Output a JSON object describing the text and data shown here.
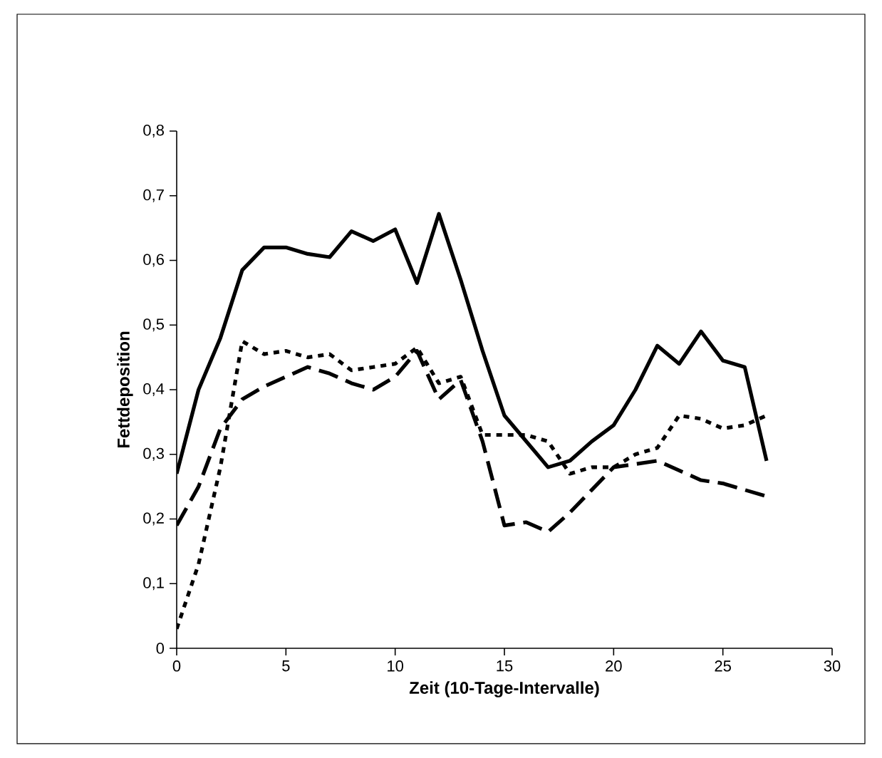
{
  "chart_data": {
    "type": "line",
    "xlabel": "Zeit (10-Tage-Intervalle)",
    "ylabel": "Fettdeposition",
    "x": [
      0,
      1,
      2,
      3,
      4,
      5,
      6,
      7,
      8,
      9,
      10,
      11,
      12,
      13,
      14,
      15,
      16,
      17,
      18,
      19,
      20,
      21,
      22,
      23,
      24,
      25,
      26,
      27
    ],
    "series": [
      {
        "color": "#000000",
        "line_style": "solid",
        "values": [
          0.27,
          0.4,
          0.48,
          0.585,
          0.62,
          0.62,
          0.61,
          0.605,
          0.645,
          0.63,
          0.648,
          0.565,
          0.672,
          0.57,
          0.46,
          0.36,
          0.32,
          0.28,
          0.29,
          0.32,
          0.345,
          0.4,
          0.468,
          0.44,
          0.49,
          0.445,
          0.435,
          0.29
        ]
      },
      {
        "color": "#000000",
        "line_style": "dotted",
        "values": [
          0.03,
          0.13,
          0.28,
          0.475,
          0.455,
          0.46,
          0.45,
          0.455,
          0.43,
          0.435,
          0.44,
          0.465,
          0.41,
          0.42,
          0.33,
          0.33,
          0.33,
          0.32,
          0.27,
          0.28,
          0.28,
          0.3,
          0.31,
          0.36,
          0.355,
          0.34,
          0.345,
          0.36
        ]
      },
      {
        "color": "#000000",
        "line_style": "dashed",
        "values": [
          0.19,
          0.25,
          0.34,
          0.385,
          0.405,
          0.42,
          0.435,
          0.425,
          0.41,
          0.4,
          0.42,
          0.46,
          0.385,
          0.415,
          0.32,
          0.19,
          0.195,
          0.18,
          0.21,
          0.245,
          0.28,
          0.285,
          0.29,
          0.275,
          0.26,
          0.255,
          0.245,
          0.235
        ]
      }
    ],
    "xlim": [
      0,
      30
    ],
    "xticks": [
      0,
      5,
      10,
      15,
      20,
      25,
      30
    ],
    "ylim": [
      0,
      0.8
    ],
    "yticks": [
      0,
      {
        "value": 0.1,
        "label": "0,1"
      },
      {
        "value": 0.2,
        "label": "0,2"
      },
      {
        "value": 0.3,
        "label": "0,3"
      },
      {
        "value": 0.4,
        "label": "0,4"
      },
      {
        "value": 0.5,
        "label": "0,5"
      },
      {
        "value": 0.6,
        "label": "0,6"
      },
      {
        "value": 0.7,
        "label": "0,7"
      },
      {
        "value": 0.8,
        "label": "0,8"
      }
    ],
    "marker": "none"
  }
}
